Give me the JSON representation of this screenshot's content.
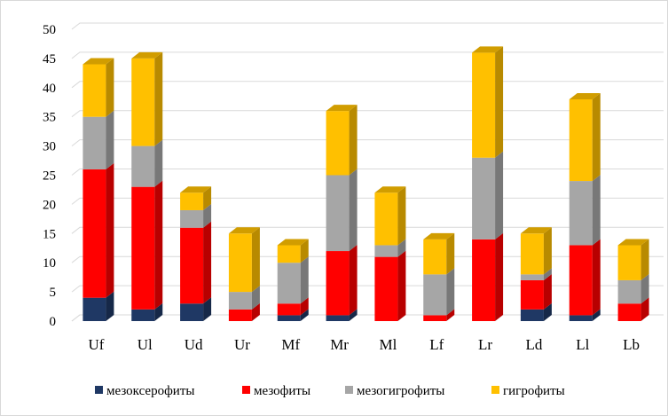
{
  "chart_data": {
    "type": "bar",
    "stacked": true,
    "style": "3d-column",
    "categories": [
      "Uf",
      "Ul",
      "Ud",
      "Ur",
      "Mf",
      "Mr",
      "Ml",
      "Lf",
      "Lr",
      "Ld",
      "Ll",
      "Lb"
    ],
    "series": [
      {
        "name": "мезоксерофиты",
        "color": "#1f3864",
        "values": [
          4,
          2,
          3,
          0,
          1,
          1,
          0,
          0,
          0,
          2,
          1,
          0
        ]
      },
      {
        "name": "мезофиты",
        "color": "#ff0000",
        "values": [
          22,
          21,
          13,
          2,
          2,
          11,
          11,
          1,
          14,
          5,
          12,
          3
        ]
      },
      {
        "name": "мезогигрофиты",
        "color": "#a6a6a6",
        "values": [
          9,
          7,
          3,
          3,
          7,
          13,
          2,
          7,
          14,
          1,
          11,
          4
        ]
      },
      {
        "name": "гигрофиты",
        "color": "#ffc000",
        "values": [
          9,
          15,
          3,
          10,
          3,
          11,
          9,
          6,
          18,
          7,
          14,
          6
        ]
      }
    ],
    "ylim": [
      0,
      50
    ],
    "yticks": [
      0,
      5,
      10,
      15,
      20,
      25,
      30,
      35,
      40,
      45,
      50
    ],
    "grid": true,
    "legend_position": "bottom"
  }
}
